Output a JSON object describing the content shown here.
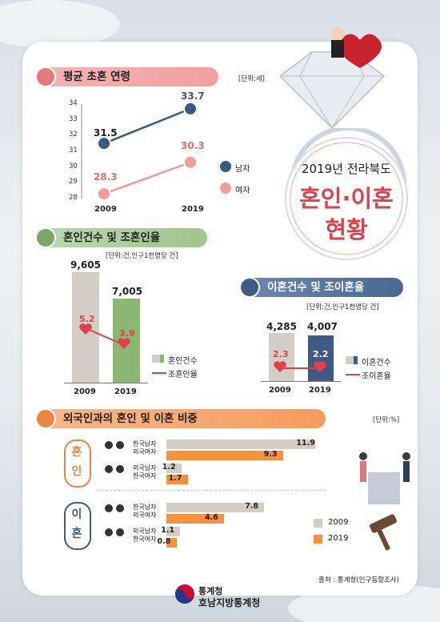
{
  "title": {
    "line1": "2019년 전라북도",
    "line2": "혼인·이혼",
    "line3": "현황"
  },
  "colors": {
    "male": "#3a5a80",
    "female": "#f09a9a",
    "marriage_bar": "#8ab873",
    "divorce_bar": "#3f5a85",
    "gray_bar": "#d2cec6",
    "accent_red": "#e0404a",
    "orange": "#f6903c"
  },
  "sections": {
    "age": {
      "title": "평균 초혼 연령",
      "unit": "[단위:세]",
      "legend_male": "남자",
      "legend_female": "여자"
    },
    "marriage": {
      "title": "혼인건수 및 조혼인율",
      "unit": "[단위:건,인구1천명당 건]",
      "legend_count": "혼인건수",
      "legend_rate": "조혼인율"
    },
    "divorce": {
      "title": "이혼건수 및 조이혼율",
      "unit": "[단위:건,인구1천명당 건]",
      "legend_count": "이혼건수",
      "legend_rate": "조이혼율"
    },
    "foreign": {
      "title": "외국인과의 혼인 및 이혼 비중",
      "unit": "[단위:%]",
      "group_marriage": "혼인",
      "group_divorce": "이혼",
      "row_a1": "한국남자",
      "row_a2": "외국여자",
      "row_b1": "외국남자",
      "row_b2": "한국여자"
    }
  },
  "chart_data": [
    {
      "type": "line",
      "title": "평균 초혼 연령",
      "x": [
        "2009",
        "2019"
      ],
      "series": [
        {
          "name": "남자",
          "values": [
            31.5,
            33.7
          ]
        },
        {
          "name": "여자",
          "values": [
            28.3,
            30.3
          ]
        }
      ],
      "ylim": [
        28,
        34
      ],
      "yticks": [
        "28",
        "29",
        "30",
        "31",
        "32",
        "33",
        "34"
      ],
      "labels": {
        "m": [
          "31.5",
          "33.7"
        ],
        "f": [
          "28.3",
          "30.3"
        ]
      }
    },
    {
      "type": "bar",
      "title": "혼인건수 및 조혼인율",
      "categories": [
        "2009",
        "2019"
      ],
      "series": [
        {
          "name": "혼인건수",
          "values": [
            9605,
            7005
          ]
        },
        {
          "name": "조혼인율",
          "values": [
            5.2,
            3.9
          ]
        }
      ],
      "labels": {
        "count": [
          "9,605",
          "7,005"
        ],
        "rate": [
          "5.2",
          "3.9"
        ]
      }
    },
    {
      "type": "bar",
      "title": "이혼건수 및 조이혼율",
      "categories": [
        "2009",
        "2019"
      ],
      "series": [
        {
          "name": "이혼건수",
          "values": [
            4285,
            4007
          ]
        },
        {
          "name": "조이혼율",
          "values": [
            2.3,
            2.2
          ]
        }
      ],
      "labels": {
        "count": [
          "4,285",
          "4,007"
        ],
        "rate": [
          "2.3",
          "2.2"
        ]
      }
    },
    {
      "type": "bar",
      "title": "외국인과의 혼인 및 이혼 비중",
      "orientation": "horizontal",
      "legend": [
        "2009",
        "2019"
      ],
      "groups": [
        {
          "name": "혼인",
          "rows": [
            {
              "label": "한국남자 외국여자",
              "v2009": 11.9,
              "v2019": 9.3
            },
            {
              "label": "외국남자 한국여자",
              "v2009": 1.2,
              "v2019": 1.7
            }
          ]
        },
        {
          "name": "이혼",
          "rows": [
            {
              "label": "한국남자 외국여자",
              "v2009": 7.8,
              "v2019": 4.6
            },
            {
              "label": "외국남자 한국여자",
              "v2009": 1.1,
              "v2019": 0.8
            }
          ]
        }
      ],
      "xlim": [
        0,
        12
      ]
    }
  ],
  "footer": {
    "source": "출처 : 통계청(인구동향조사)",
    "org1": "통계청",
    "org2": "호남지방통계청"
  }
}
